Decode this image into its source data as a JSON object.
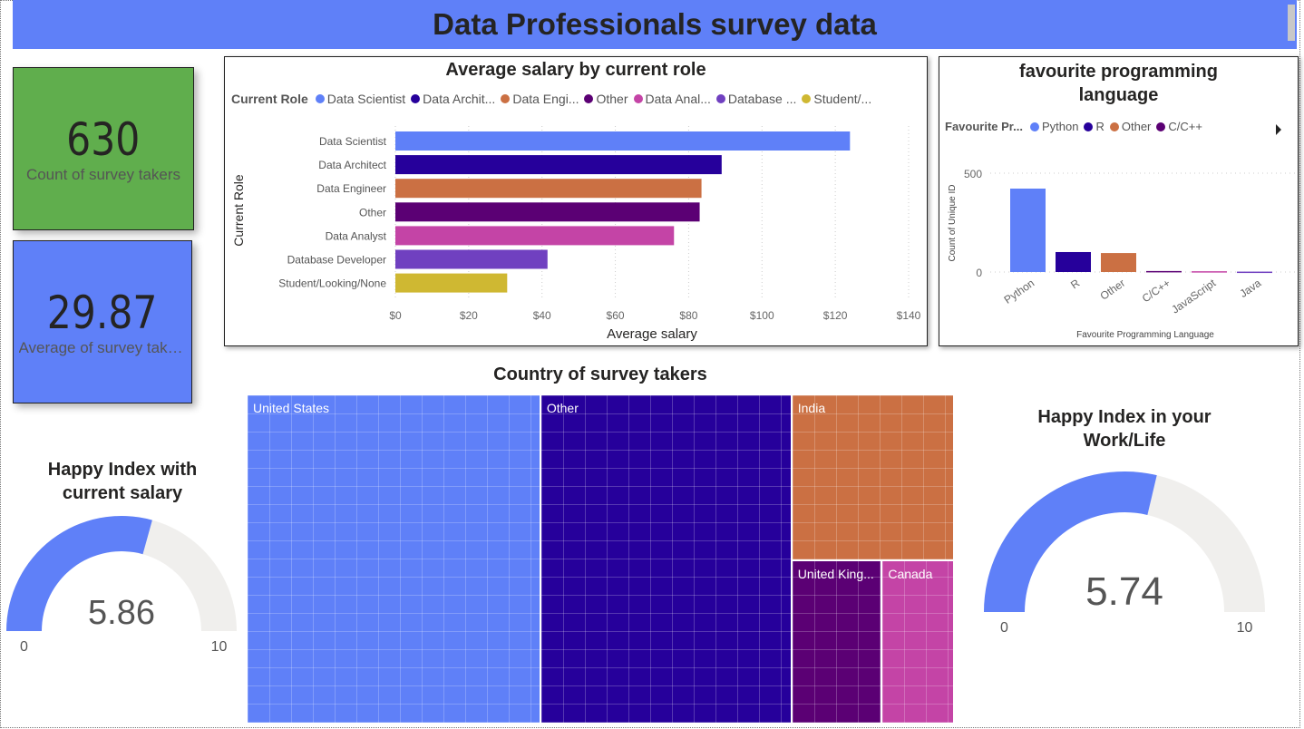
{
  "header": {
    "title": "Data Professionals survey data"
  },
  "cards": [
    {
      "value": "630",
      "label": "Count of survey takers",
      "color": "#60ae4d"
    },
    {
      "value": "29.87",
      "label": "Average of survey takers",
      "color": "#5f80f8"
    }
  ],
  "chart_data": [
    {
      "type": "bar",
      "orientation": "horizontal",
      "title": "Average salary by current role",
      "legend_title": "Current Role",
      "legend": [
        "Data Scientist",
        "Data Archit...",
        "Data Engi...",
        "Other",
        "Data Anal...",
        "Database ...",
        "Student/..."
      ],
      "categories": [
        "Data Scientist",
        "Data Architect",
        "Data Engineer",
        "Other",
        "Data Analyst",
        "Database Developer",
        "Student/Looking/None"
      ],
      "values": [
        124,
        89,
        83.5,
        83,
        76,
        41.5,
        30.5
      ],
      "colors": [
        "#5f80f8",
        "#26009b",
        "#cb7043",
        "#5b0074",
        "#c444a6",
        "#7040c0",
        "#cfb832"
      ],
      "xlabel": "Average salary",
      "ylabel": "Current Role",
      "xlim": [
        0,
        140
      ],
      "xticks": [
        "$0",
        "$20",
        "$40",
        "$60",
        "$80",
        "$100",
        "$120",
        "$140"
      ],
      "grid": true
    },
    {
      "type": "bar",
      "title": "favourite programming language",
      "legend_title": "Favourite Pr...",
      "legend": [
        "Python",
        "R",
        "Other",
        "C/C++"
      ],
      "categories": [
        "Python",
        "R",
        "Other",
        "C/C++",
        "JavaScript",
        "Java"
      ],
      "values": [
        422,
        101,
        96,
        5,
        4,
        2
      ],
      "colors": [
        "#5f80f8",
        "#26009b",
        "#cb7043",
        "#5b0074",
        "#c444a6",
        "#7040c0"
      ],
      "xlabel": "Favourite Programming Language",
      "ylabel": "Count of Unique ID",
      "ylim": [
        0,
        500
      ],
      "yticks": [
        "0",
        "500"
      ],
      "grid": true
    },
    {
      "type": "treemap",
      "title": "Country of survey takers",
      "categories": [
        "United States",
        "Other",
        "India",
        "United Kingdom",
        "Canada"
      ],
      "labels": [
        "United States",
        "Other",
        "India",
        "United King...",
        "Canada"
      ],
      "values": [
        262,
        224,
        73,
        40,
        32
      ],
      "colors": [
        "#5f80f8",
        "#26009b",
        "#cb7043",
        "#5b0074",
        "#c444a6"
      ]
    },
    {
      "type": "gauge",
      "title": "Happy Index with current salary",
      "value": 5.86,
      "value_label": "5.86",
      "min": 0,
      "max": 10,
      "min_label": "0",
      "max_label": "10",
      "fill": "#5f80f8",
      "track": "#f0efed"
    },
    {
      "type": "gauge",
      "title": "Happy Index in your Work/Life",
      "value": 5.74,
      "value_label": "5.74",
      "min": 0,
      "max": 10,
      "min_label": "0",
      "max_label": "10",
      "fill": "#5f80f8",
      "track": "#f0efed"
    }
  ]
}
